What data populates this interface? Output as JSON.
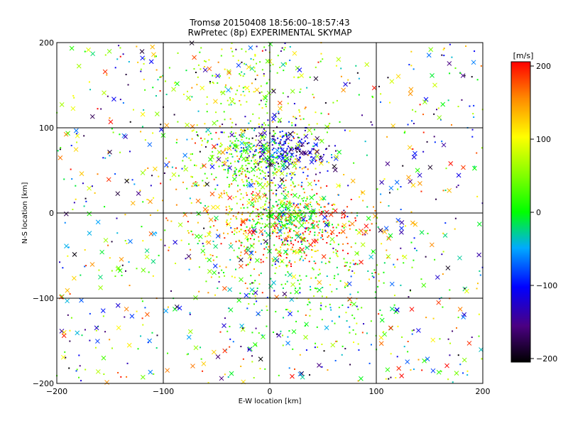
{
  "chart_data": {
    "type": "scatter",
    "title": "Tromsø 20150408 18:56:00–18:57:43",
    "subtitle": "RwPretec (8p) EXPERIMENTAL SKYMAP",
    "xlabel": "E-W location [km]",
    "ylabel": "N-S location [km]",
    "xlim": [
      -200,
      200
    ],
    "ylim": [
      -200,
      200
    ],
    "xticks": [
      "−200",
      "−100",
      "0",
      "100",
      "200"
    ],
    "yticks": [
      "−200",
      "−100",
      "0",
      "100",
      "200"
    ],
    "grid": true,
    "colorbar": {
      "unit": "[m/s]",
      "range": [
        -200,
        200
      ],
      "ticks": [
        "200",
        "100",
        "0",
        "−100",
        "−200"
      ]
    },
    "markers": [
      "dot",
      "cross"
    ],
    "clusters": [
      {
        "x": -20,
        "y": 0,
        "spread_x": 45,
        "spread_y": 40,
        "speed": 120
      },
      {
        "x": 10,
        "y": 75,
        "spread_x": 25,
        "spread_y": 15,
        "speed": -120
      },
      {
        "x": -20,
        "y": 60,
        "spread_x": 25,
        "spread_y": 20,
        "speed": 30
      },
      {
        "x": 25,
        "y": -15,
        "spread_x": 40,
        "spread_y": 25,
        "speed": 180
      },
      {
        "x": 15,
        "y": -5,
        "spread_x": 20,
        "spread_y": 15,
        "speed": 10
      },
      {
        "x": 40,
        "y": -80,
        "spread_x": 50,
        "spread_y": 40,
        "speed": 20
      },
      {
        "x": -20,
        "y": 150,
        "spread_x": 50,
        "spread_y": 40,
        "speed": 60
      }
    ]
  }
}
